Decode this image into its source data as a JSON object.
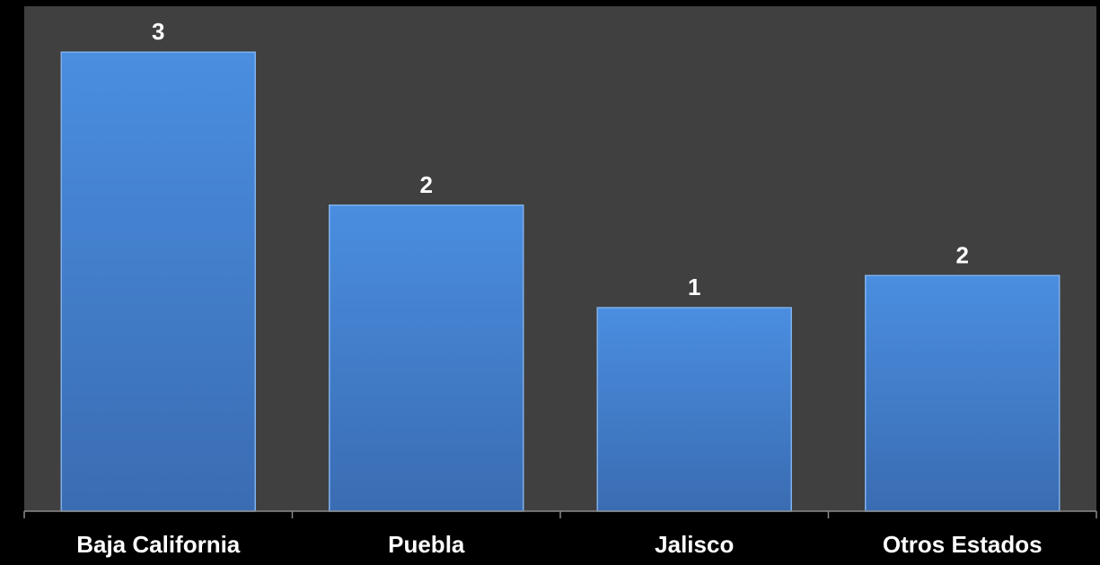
{
  "chart_data": {
    "type": "bar",
    "title": "",
    "xlabel": "",
    "ylabel": "",
    "categories": [
      "Baja California",
      "Puebla",
      "Jalisco",
      "Otros Estados"
    ],
    "series": [
      {
        "values": [
          3,
          2,
          1,
          2
        ],
        "data_values": [
          3.0,
          2.0,
          1.33,
          1.54
        ]
      }
    ],
    "data_labels": [
      "3",
      "2",
      "1",
      "2"
    ],
    "ylim": [
      0,
      3.3
    ],
    "grid": false,
    "legend": "none",
    "colors": {
      "page_background": "#000000",
      "plot_background": "#404040",
      "bar_top": "#4a8ee0",
      "bar_bottom": "#3a6cb2",
      "bar_edge": "#7fb0ec",
      "axis": "#8a8a8a",
      "text": "#ffffff"
    }
  }
}
